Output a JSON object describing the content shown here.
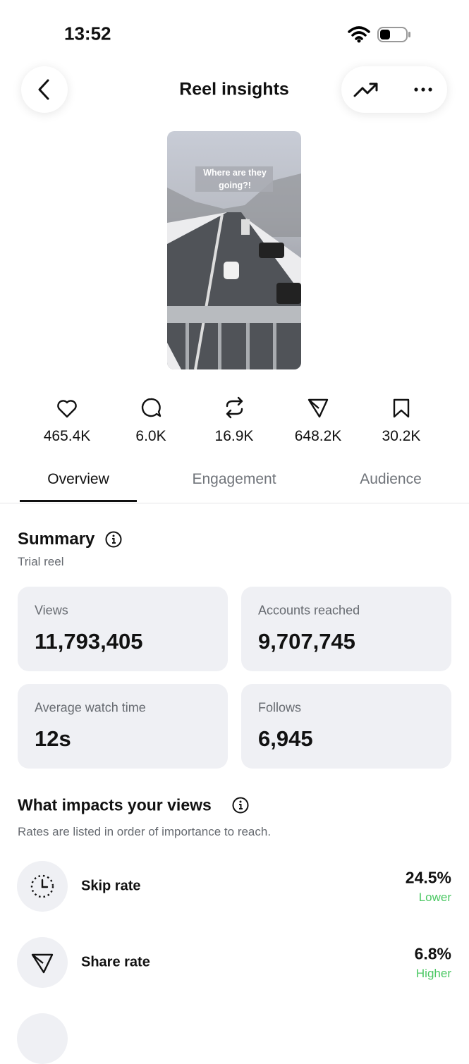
{
  "status_bar": {
    "time": "13:52"
  },
  "header": {
    "title": "Reel insights"
  },
  "thumbnail": {
    "caption": "Where are they going?!"
  },
  "stats": [
    "465.4K",
    "6.0K",
    "16.9K",
    "648.2K",
    "30.2K"
  ],
  "tabs": [
    "Overview",
    "Engagement",
    "Audience"
  ],
  "summary": {
    "title": "Summary",
    "subtitle": "Trial reel",
    "cards": [
      {
        "label": "Views",
        "value": "11,793,405"
      },
      {
        "label": "Accounts reached",
        "value": "9,707,745"
      },
      {
        "label": "Average watch time",
        "value": "12s"
      },
      {
        "label": "Follows",
        "value": "6,945"
      }
    ]
  },
  "impacts": {
    "title": "What impacts your views",
    "note": "Rates are listed in order of importance to reach.",
    "rows": [
      {
        "label": "Skip rate",
        "value": "24.5%",
        "status": "Lower"
      },
      {
        "label": "Share rate",
        "value": "6.8%",
        "status": "Higher"
      }
    ]
  }
}
